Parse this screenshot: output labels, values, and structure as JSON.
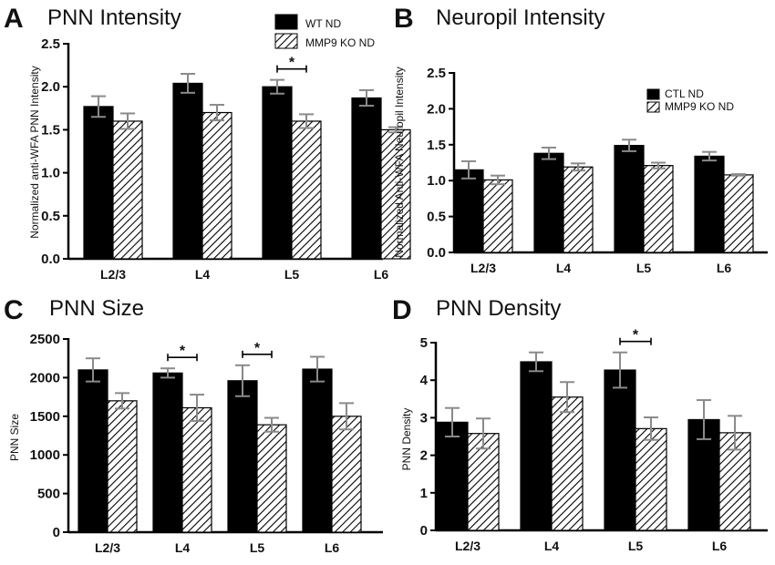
{
  "colors": {
    "wt": "#000000",
    "ko_fill": "#ffffff",
    "hatch": "#000000",
    "error": "#8a8a8a",
    "axis": "#000000"
  },
  "chart_data": [
    {
      "id": "A",
      "panel_letter": "A",
      "type": "bar",
      "title": "PNN Intensity",
      "xlabel": "",
      "ylabel": "Normalized anti-WFA PNN Intensity",
      "categories": [
        "L2/3",
        "L4",
        "L5",
        "L6"
      ],
      "ylim": [
        0,
        2.5
      ],
      "yticks": [
        0.0,
        0.5,
        1.0,
        1.5,
        2.0,
        2.5
      ],
      "ytick_labels": [
        "0.0",
        "0.5",
        "1.0",
        "1.5",
        "2.0",
        "2.5"
      ],
      "legend": [
        "WT ND",
        "MMP9 KO ND"
      ],
      "legend_position": "top-right",
      "series": [
        {
          "name": "WT ND",
          "pattern": "solid",
          "values": [
            1.77,
            2.04,
            2.0,
            1.87
          ],
          "errors": [
            0.12,
            0.11,
            0.08,
            0.09
          ]
        },
        {
          "name": "MMP9 KO ND",
          "pattern": "hatch",
          "values": [
            1.6,
            1.7,
            1.6,
            1.5
          ],
          "errors": [
            0.09,
            0.09,
            0.08,
            0.03
          ]
        }
      ],
      "significance": [
        {
          "category_index": 2,
          "label": "*"
        }
      ]
    },
    {
      "id": "B",
      "panel_letter": "B",
      "type": "bar",
      "title": "Neuropil Intensity",
      "xlabel": "",
      "ylabel": "Normalized Anti-WFA Neuropil Intensity",
      "categories": [
        "L2/3",
        "L4",
        "L5",
        "L6"
      ],
      "ylim": [
        0,
        2.5
      ],
      "yticks": [
        0.0,
        0.5,
        1.0,
        1.5,
        2.0,
        2.5
      ],
      "ytick_labels": [
        "0.0",
        "0.5",
        "1.0",
        "1.5",
        "2.0",
        "2.5"
      ],
      "legend": [
        "CTL ND",
        "MMP9 KO ND"
      ],
      "legend_position": "top-right",
      "series": [
        {
          "name": "CTL ND",
          "pattern": "solid",
          "values": [
            1.15,
            1.38,
            1.49,
            1.34
          ],
          "errors": [
            0.12,
            0.08,
            0.08,
            0.06
          ]
        },
        {
          "name": "MMP9 KO ND",
          "pattern": "hatch",
          "values": [
            1.01,
            1.19,
            1.21,
            1.08
          ],
          "errors": [
            0.06,
            0.05,
            0.04,
            0.01
          ]
        }
      ],
      "significance": []
    },
    {
      "id": "C",
      "panel_letter": "C",
      "type": "bar",
      "title": "PNN Size",
      "xlabel": "",
      "ylabel": "PNN Size",
      "categories": [
        "L2/3",
        "L4",
        "L5",
        "L6"
      ],
      "ylim": [
        0,
        2500
      ],
      "yticks": [
        0,
        500,
        1000,
        1500,
        2000,
        2500
      ],
      "ytick_labels": [
        "0",
        "500",
        "1000",
        "1500",
        "2000",
        "2500"
      ],
      "legend": [],
      "series": [
        {
          "name": "WT ND",
          "pattern": "solid",
          "values": [
            2100,
            2060,
            1960,
            2110
          ],
          "errors": [
            150,
            60,
            200,
            160
          ]
        },
        {
          "name": "MMP9 KO ND",
          "pattern": "hatch",
          "values": [
            1700,
            1610,
            1390,
            1500
          ],
          "errors": [
            100,
            170,
            90,
            170
          ]
        }
      ],
      "significance": [
        {
          "category_index": 1,
          "label": "*"
        },
        {
          "category_index": 2,
          "label": "*"
        }
      ]
    },
    {
      "id": "D",
      "panel_letter": "D",
      "type": "bar",
      "title": "PNN Density",
      "xlabel": "",
      "ylabel": "PNN Density",
      "categories": [
        "L2/3",
        "L4",
        "L5",
        "L6"
      ],
      "ylim": [
        0,
        5
      ],
      "yticks": [
        0,
        1,
        2,
        3,
        4,
        5
      ],
      "ytick_labels": [
        "0",
        "1",
        "2",
        "3",
        "4",
        "5"
      ],
      "legend": [],
      "series": [
        {
          "name": "WT ND",
          "pattern": "solid",
          "values": [
            2.88,
            4.49,
            4.27,
            2.95
          ],
          "errors": [
            0.38,
            0.25,
            0.47,
            0.52
          ]
        },
        {
          "name": "MMP9 KO ND",
          "pattern": "hatch",
          "values": [
            2.58,
            3.55,
            2.71,
            2.6
          ],
          "errors": [
            0.4,
            0.4,
            0.3,
            0.45
          ]
        }
      ],
      "significance": [
        {
          "category_index": 2,
          "label": "*"
        }
      ]
    }
  ]
}
